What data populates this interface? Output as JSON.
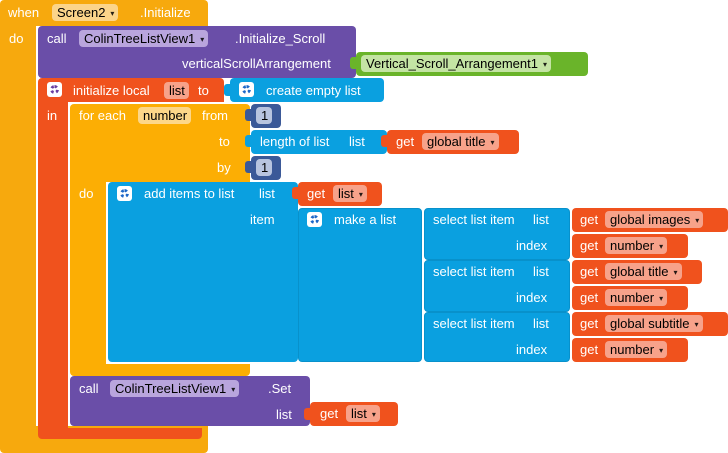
{
  "colors": {
    "event_orange": "#f7a90d",
    "component_purple": "#6a4ea8",
    "variable_red": "#f0521d",
    "control_orange": "#fcae04",
    "list_blue": "#0aa0e0",
    "math_navy": "#3b5998",
    "property_green": "#6ab42a",
    "text_dark": "#000000"
  },
  "event": {
    "when": "when",
    "component": "Screen2",
    "event_name": ".Initialize",
    "do": "do"
  },
  "init_scroll": {
    "call": "call",
    "component": "ColinTreeListView1",
    "method": ".Initialize_Scroll",
    "param_label": "verticalScrollArrangement",
    "param_value": "Vertical_Scroll_Arrangement1"
  },
  "local_var": {
    "label": "initialize local",
    "name": "list",
    "to": "to",
    "value": "create empty list",
    "in": "in"
  },
  "for_each": {
    "label": "for each",
    "var": "number",
    "from_label": "from",
    "from_value": "1",
    "to_label": "to",
    "length_label": "length of list",
    "list_label": "list",
    "get": "get",
    "length_var": "global title",
    "by_label": "by",
    "by_value": "1",
    "do": "do"
  },
  "add_items": {
    "label": "add items to list",
    "list_label": "list",
    "get": "get",
    "list_var": "list",
    "item_label": "item",
    "make_list": "make a list"
  },
  "select_items": [
    {
      "label": "select list item",
      "list_label": "list",
      "get": "get",
      "list_var": "global images",
      "index_label": "index",
      "index_get": "get",
      "index_var": "number"
    },
    {
      "label": "select list item",
      "list_label": "list",
      "get": "get",
      "list_var": "global title",
      "index_label": "index",
      "index_get": "get",
      "index_var": "number"
    },
    {
      "label": "select list item",
      "list_label": "list",
      "get": "get",
      "list_var": "global subtitle",
      "index_label": "index",
      "index_get": "get",
      "index_var": "number"
    }
  ],
  "set_call": {
    "call": "call",
    "component": "ColinTreeListView1",
    "method": ".Set",
    "list_label": "list",
    "get": "get",
    "var": "list"
  },
  "icons": {
    "mutator": "gear-icon",
    "dropdown": "dropdown-arrow-icon",
    "dropdown_glyph": "▾"
  }
}
